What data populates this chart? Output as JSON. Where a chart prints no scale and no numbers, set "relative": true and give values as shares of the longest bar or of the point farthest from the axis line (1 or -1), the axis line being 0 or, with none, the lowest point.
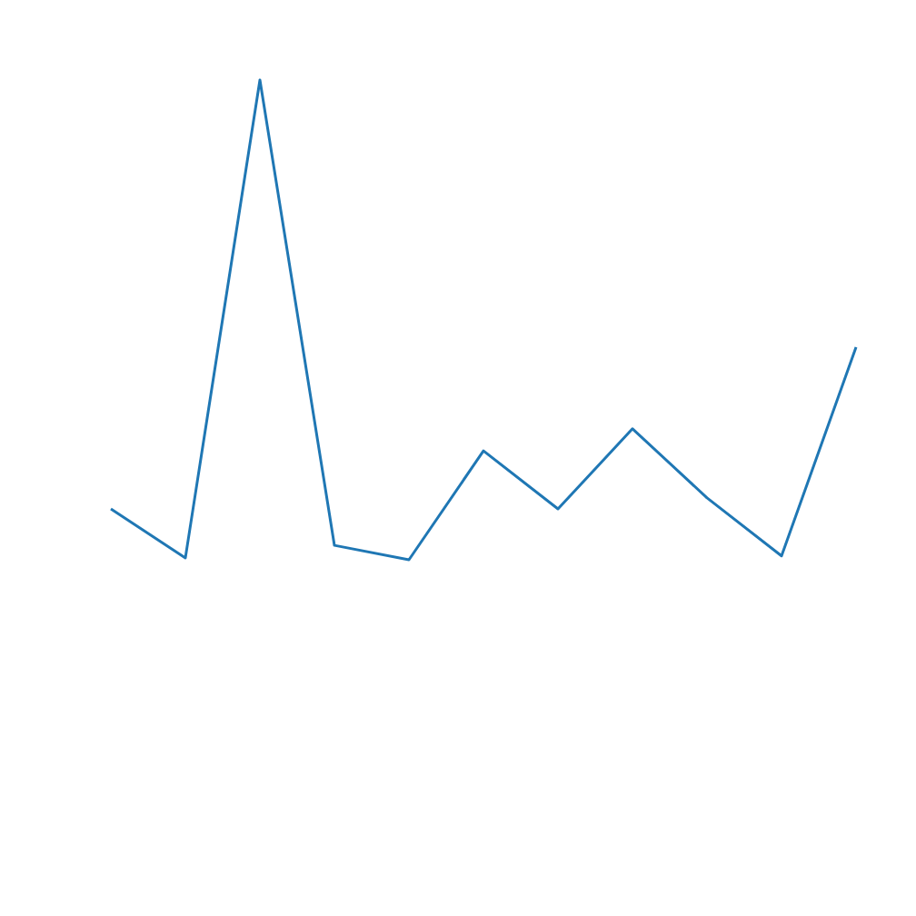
{
  "chart_data": {
    "type": "line",
    "relative": true,
    "color": "#1f77b4",
    "categories": [
      null,
      null,
      null,
      null,
      null,
      null,
      null,
      null,
      null,
      null,
      null
    ],
    "values": [
      0.106,
      0.004,
      1,
      0.03,
      0,
      0.227,
      0.106,
      0.273,
      0.129,
      0.008,
      0.443
    ]
  }
}
